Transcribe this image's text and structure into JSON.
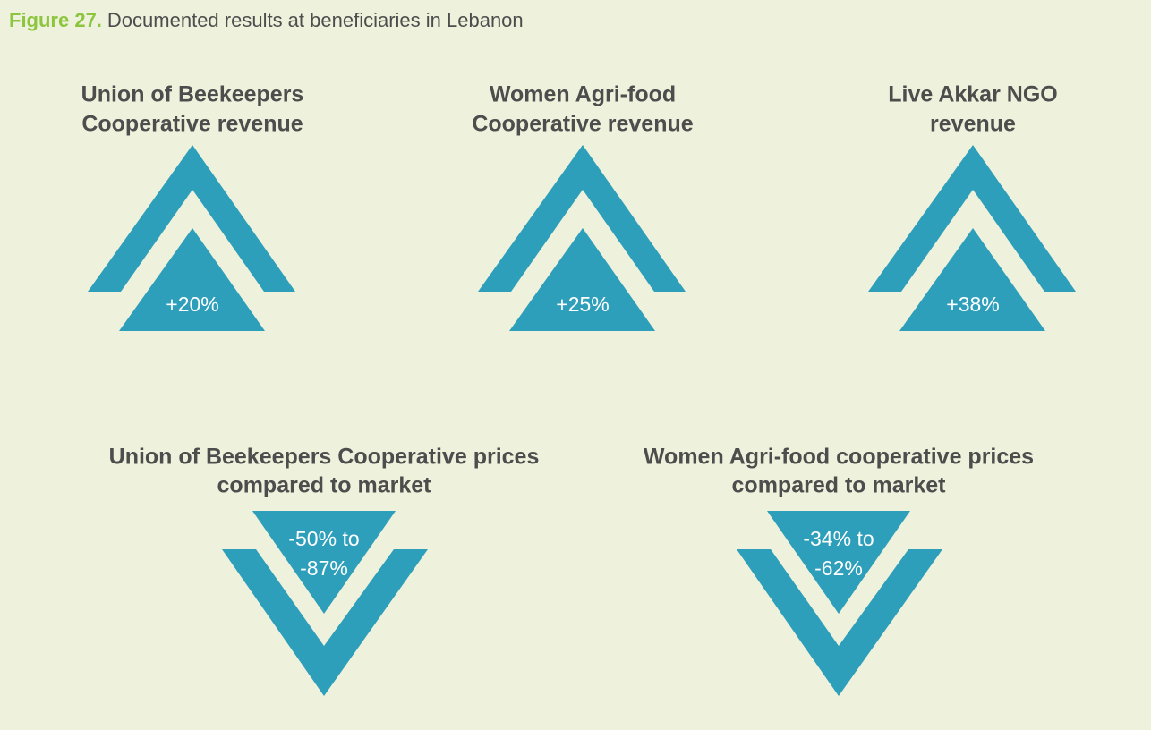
{
  "header": {
    "figure": "Figure 27.",
    "title": "Documented results at beneficiaries in Lebanon"
  },
  "increases": [
    {
      "label": [
        "Union of Beekeepers",
        "Cooperative revenue"
      ],
      "value": [
        "+20%"
      ]
    },
    {
      "label": [
        "Women Agri-food",
        "Cooperative revenue"
      ],
      "value": [
        "+25%"
      ]
    },
    {
      "label": [
        "Live Akkar NGO",
        "revenue"
      ],
      "value": [
        "+38%"
      ]
    }
  ],
  "decreases": [
    {
      "label": [
        "Union of Beekeepers Cooperative prices",
        "compared to market"
      ],
      "value": [
        "-50% to",
        "-87%"
      ]
    },
    {
      "label": [
        "Women Agri-food cooperative prices",
        "compared to market"
      ],
      "value": [
        "-34% to",
        "-62%"
      ]
    }
  ]
}
